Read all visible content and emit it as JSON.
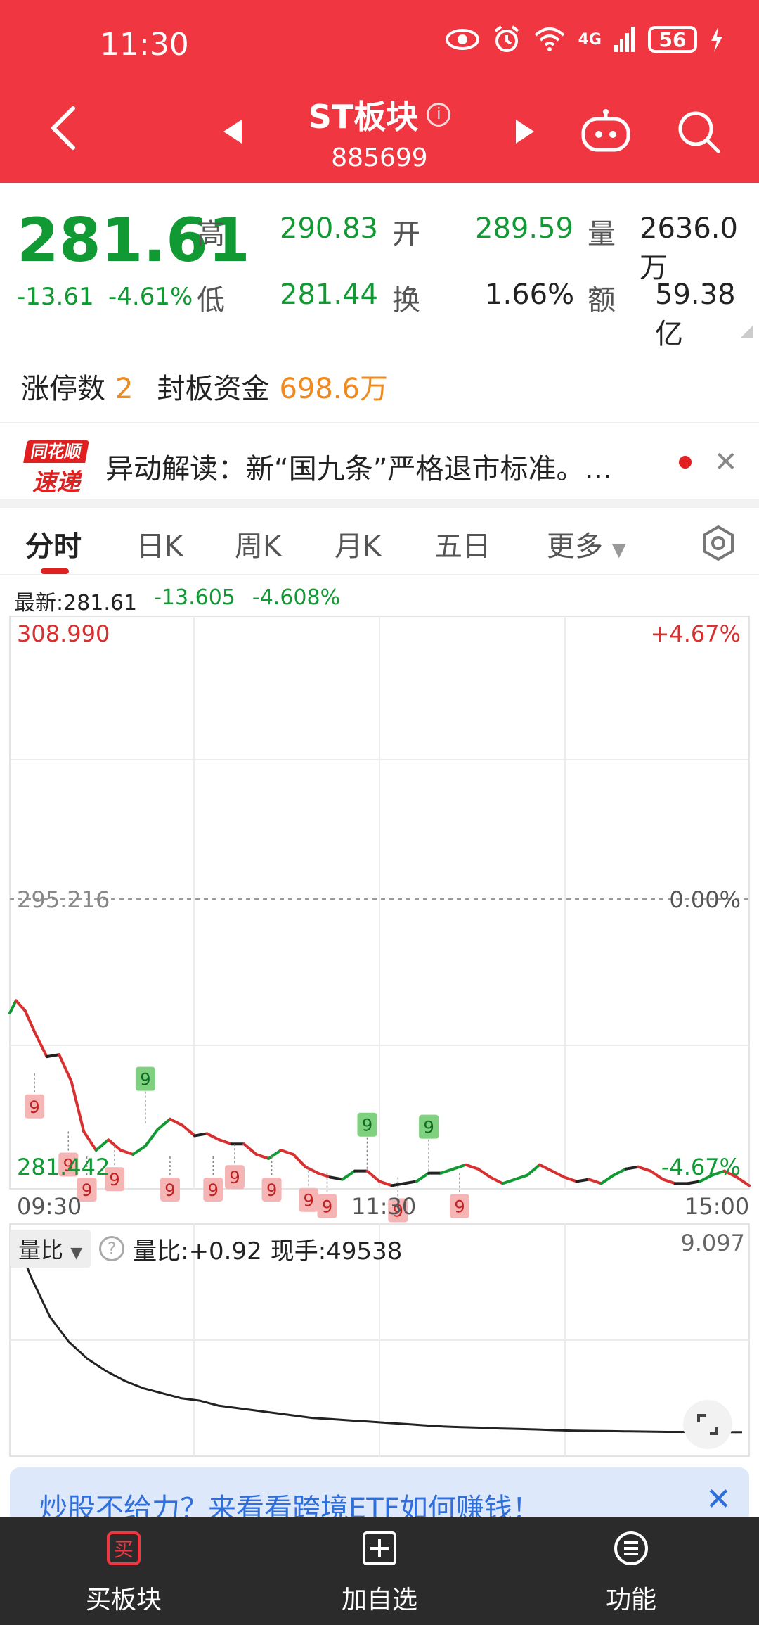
{
  "status_bar": {
    "time": "11:30",
    "network_label": "4G",
    "battery": "56"
  },
  "header": {
    "title": "ST板块",
    "code": "885699"
  },
  "quote": {
    "price": "281.61",
    "change": "-13.61",
    "change_pct": "-4.61%",
    "high_label": "高",
    "high": "290.83",
    "open_label": "开",
    "open": "289.59",
    "vol_label": "量",
    "volume": "2636.0万",
    "low_label": "低",
    "low": "281.44",
    "turnover_label": "换",
    "turnover": "1.66%",
    "amount_label": "额",
    "amount": "59.38亿"
  },
  "limit": {
    "count_label": "涨停数",
    "count": "2",
    "fund_label": "封板资金",
    "fund": "698.6万"
  },
  "news": {
    "logo_top": "同花顺",
    "logo_bottom": "速递",
    "text": "异动解读：新“国九条”严格退市标准。…"
  },
  "tabs": [
    "分时",
    "日K",
    "周K",
    "月K",
    "五日",
    "更多"
  ],
  "latest": {
    "label": "最新:281.61",
    "change": "-13.605",
    "pct": "-4.608%"
  },
  "chart_data": {
    "type": "line",
    "title": "",
    "x_ticks": [
      "09:30",
      "11:30",
      "15:00"
    ],
    "ylim": [
      281.442,
      308.99
    ],
    "y_top_label": "308.990",
    "y_mid_label": "295.216",
    "y_bottom_label": "281.442",
    "pct_top_label": "+4.67%",
    "pct_mid_label": "0.00%",
    "pct_bottom_label": "-4.67%",
    "series": [
      {
        "x": [
          0,
          2,
          5,
          8,
          12,
          16,
          20,
          24,
          28,
          32,
          36,
          40,
          44,
          48,
          52,
          56,
          60,
          64,
          68,
          72,
          76,
          80,
          84,
          88,
          92,
          96,
          100,
          104,
          108,
          112,
          116,
          120,
          124,
          128,
          132,
          136,
          140,
          144,
          148,
          152,
          156,
          160,
          164,
          168,
          172,
          176,
          180,
          184,
          188,
          192,
          196,
          200,
          204,
          208,
          212,
          216,
          220,
          224,
          228,
          232,
          236,
          240
        ],
        "values": [
          289.9,
          290.5,
          290.0,
          289.0,
          287.8,
          287.9,
          286.6,
          284.2,
          283.3,
          283.8,
          283.3,
          283.1,
          283.5,
          284.3,
          284.8,
          284.5,
          284.0,
          284.1,
          283.8,
          283.6,
          283.6,
          283.1,
          282.9,
          283.3,
          283.1,
          282.5,
          282.2,
          282.0,
          281.9,
          282.3,
          282.3,
          281.8,
          281.6,
          281.7,
          281.8,
          282.2,
          282.2,
          282.4,
          282.6,
          282.4,
          282.0,
          281.7,
          281.9,
          282.1,
          282.6,
          282.3,
          282.0,
          281.8,
          281.9,
          281.7,
          282.1,
          282.4,
          282.5,
          282.3,
          281.9,
          281.7,
          281.7,
          281.8,
          282.1,
          282.3,
          282.0,
          281.6
        ]
      }
    ],
    "markers": [
      {
        "x": 8,
        "price": 287.0,
        "label": "9",
        "color": "red"
      },
      {
        "x": 19,
        "price": 284.2,
        "label": "9",
        "color": "red"
      },
      {
        "x": 25,
        "price": 283.0,
        "label": "9",
        "color": "red"
      },
      {
        "x": 34,
        "price": 283.5,
        "label": "9",
        "color": "red"
      },
      {
        "x": 44,
        "price": 284.6,
        "label": "9",
        "color": "green"
      },
      {
        "x": 52,
        "price": 283.0,
        "label": "9",
        "color": "red"
      },
      {
        "x": 66,
        "price": 283.0,
        "label": "9",
        "color": "red"
      },
      {
        "x": 73,
        "price": 283.6,
        "label": "9",
        "color": "red"
      },
      {
        "x": 85,
        "price": 283.0,
        "label": "9",
        "color": "red"
      },
      {
        "x": 97,
        "price": 282.5,
        "label": "9",
        "color": "red"
      },
      {
        "x": 103,
        "price": 282.2,
        "label": "9",
        "color": "red"
      },
      {
        "x": 116,
        "price": 282.4,
        "label": "9",
        "color": "green"
      },
      {
        "x": 126,
        "price": 282.0,
        "label": "9",
        "color": "red"
      },
      {
        "x": 136,
        "price": 282.3,
        "label": "9",
        "color": "green"
      },
      {
        "x": 146,
        "price": 282.2,
        "label": "9",
        "color": "red"
      }
    ]
  },
  "volume_ratio": {
    "select_label": "量比",
    "ratio_text": "量比:+0.92",
    "hand_text": "现手:49538",
    "max_label": "9.097",
    "values": [
      9.097,
      7.2,
      5.6,
      4.6,
      3.9,
      3.4,
      3.0,
      2.7,
      2.5,
      2.3,
      2.2,
      2.0,
      1.9,
      1.8,
      1.7,
      1.6,
      1.5,
      1.45,
      1.4,
      1.35,
      1.3,
      1.25,
      1.2,
      1.15,
      1.12,
      1.1,
      1.07,
      1.05,
      1.03,
      1.0,
      0.98,
      0.97,
      0.96,
      0.95,
      0.94,
      0.93,
      0.93,
      0.92,
      0.92,
      0.92
    ]
  },
  "banner": {
    "text": "炒股不给力？来看看跨境ETF如何赚钱！"
  },
  "bottom_nav": [
    {
      "label": "买板块"
    },
    {
      "label": "加自选"
    },
    {
      "label": "功能"
    }
  ],
  "colors": {
    "header_red": "#f03640",
    "down_green": "#119a33",
    "up_red": "#d83030",
    "accent_orange": "#f08a1c"
  }
}
